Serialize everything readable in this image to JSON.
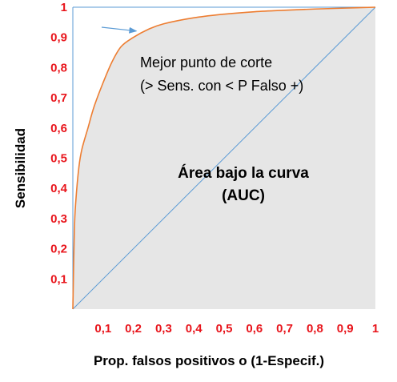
{
  "chart_data": {
    "type": "area",
    "xlabel": "Prop. falsos positivos o (1-Especif.)",
    "ylabel": "Sensibilidad",
    "xlim": [
      0,
      1
    ],
    "ylim": [
      0,
      1
    ],
    "x_ticks": [
      "0,1",
      "0,2",
      "0,3",
      "0,4",
      "0,5",
      "0,6",
      "0,7",
      "0,8",
      "0,9",
      "1"
    ],
    "x_tick_values": [
      0.1,
      0.2,
      0.3,
      0.4,
      0.5,
      0.6,
      0.7,
      0.8,
      0.9,
      1.0
    ],
    "y_ticks": [
      "0,1",
      "0,2",
      "0,3",
      "0,4",
      "0,5",
      "0,6",
      "0,7",
      "0,8",
      "0,9",
      "1"
    ],
    "y_tick_values": [
      0.1,
      0.2,
      0.3,
      0.4,
      0.5,
      0.6,
      0.7,
      0.8,
      0.9,
      1.0
    ],
    "series": [
      {
        "curve_color": "#ed7d31",
        "fill_color": "#e6e6e6",
        "x": [
          0,
          0.005,
          0.01,
          0.02,
          0.03,
          0.05,
          0.07,
          0.1,
          0.13,
          0.16,
          0.2,
          0.25,
          0.3,
          0.4,
          0.5,
          0.6,
          0.7,
          0.8,
          0.9,
          1.0
        ],
        "y": [
          0,
          0.26,
          0.36,
          0.47,
          0.53,
          0.6,
          0.67,
          0.75,
          0.82,
          0.87,
          0.9,
          0.927,
          0.945,
          0.965,
          0.977,
          0.985,
          0.99,
          0.994,
          0.997,
          1.0
        ]
      }
    ],
    "diagonal_color": "#5b9bd5",
    "arrow_color": "#5b9bd5",
    "arrow_target": {
      "x": 0.21,
      "y": 0.905
    },
    "annotations": {
      "cutoff_line1": "Mejor punto de corte",
      "cutoff_line2": "(> Sens. con < P Falso +)",
      "auc_line1": "Área bajo la curva",
      "auc_line2": "(AUC)"
    }
  }
}
